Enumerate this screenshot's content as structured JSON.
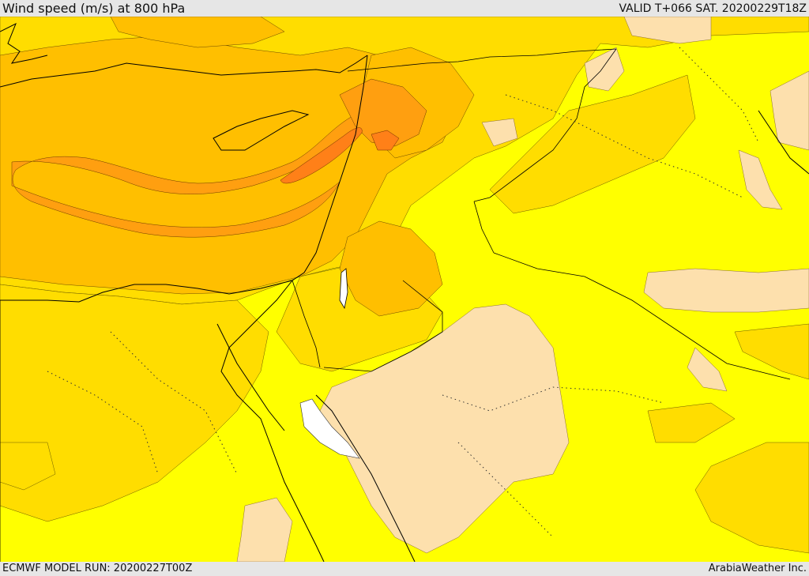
{
  "header": {
    "title": "Wind speed (m/s) at 800 hPa",
    "valid": "VALID T+066 SAT. 20200229T18Z"
  },
  "footer": {
    "model_run": "ECMWF MODEL RUN: 20200227T00Z",
    "credit": "ArabiaWeather Inc."
  },
  "map": {
    "variable": "wind speed",
    "level": "800 hPa",
    "colors": {
      "calm_tan": "#fde0ad",
      "low_yellow": "#ffff00",
      "moderate_gold": "#ffdd00",
      "strong_amber": "#ffbf00",
      "stronger_orange": "#ff9f10",
      "strongest_dark_orange": "#ff8018",
      "no_data_white": "#ffffff",
      "coastline": "#000000",
      "border_dots": "#333333"
    }
  }
}
